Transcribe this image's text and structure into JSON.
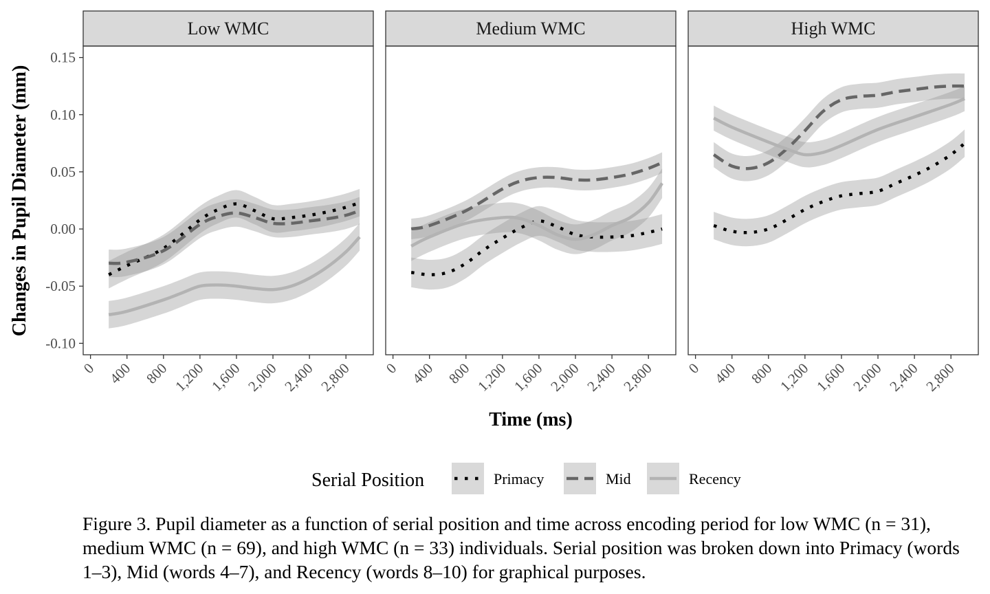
{
  "chart_data": {
    "type": "line",
    "ylabel": "Changes in Pupil Diameter (mm)",
    "xlabel": "Time (ms)",
    "xlim": [
      -80,
      3100
    ],
    "ylim": [
      -0.11,
      0.16
    ],
    "x_ticks": [
      0,
      400,
      800,
      1200,
      1600,
      2000,
      2400,
      2800
    ],
    "x_tick_labels": [
      "0",
      "400",
      "800",
      "1,200",
      "1,600",
      "2,000",
      "2,400",
      "2,800"
    ],
    "y_ticks": [
      -0.1,
      -0.05,
      0.0,
      0.05,
      0.1,
      0.15
    ],
    "y_tick_labels": [
      "-0.10",
      "-0.05",
      "0.00",
      "0.05",
      "0.10",
      "0.15"
    ],
    "grid": false,
    "legend": {
      "title": "Serial Position",
      "position": "bottom",
      "entries": [
        "Primacy",
        "Mid",
        "Recency"
      ]
    },
    "panels": [
      {
        "title": "Low WMC",
        "series": [
          {
            "name": "Primacy",
            "band": 0.012,
            "points": [
              [
                200,
                -0.04
              ],
              [
                400,
                -0.032
              ],
              [
                800,
                -0.017
              ],
              [
                1200,
                0.008
              ],
              [
                1400,
                0.017
              ],
              [
                1600,
                0.022
              ],
              [
                1800,
                0.016
              ],
              [
                2000,
                0.009
              ],
              [
                2200,
                0.01
              ],
              [
                2400,
                0.012
              ],
              [
                2600,
                0.015
              ],
              [
                2800,
                0.019
              ],
              [
                2950,
                0.023
              ]
            ]
          },
          {
            "name": "Mid",
            "band": 0.012,
            "points": [
              [
                200,
                -0.03
              ],
              [
                400,
                -0.029
              ],
              [
                800,
                -0.019
              ],
              [
                1200,
                0.004
              ],
              [
                1400,
                0.011
              ],
              [
                1600,
                0.014
              ],
              [
                1800,
                0.01
              ],
              [
                2000,
                0.005
              ],
              [
                2200,
                0.005
              ],
              [
                2400,
                0.007
              ],
              [
                2600,
                0.009
              ],
              [
                2800,
                0.012
              ],
              [
                2950,
                0.016
              ]
            ]
          },
          {
            "name": "Recency",
            "band": 0.012,
            "points": [
              [
                200,
                -0.075
              ],
              [
                400,
                -0.072
              ],
              [
                800,
                -0.062
              ],
              [
                1000,
                -0.056
              ],
              [
                1200,
                -0.05
              ],
              [
                1400,
                -0.049
              ],
              [
                1600,
                -0.05
              ],
              [
                1800,
                -0.052
              ],
              [
                2000,
                -0.053
              ],
              [
                2200,
                -0.05
              ],
              [
                2400,
                -0.043
              ],
              [
                2600,
                -0.033
              ],
              [
                2800,
                -0.02
              ],
              [
                2950,
                -0.007
              ]
            ]
          }
        ]
      },
      {
        "title": "Medium WMC",
        "series": [
          {
            "name": "Primacy",
            "band": 0.013,
            "points": [
              [
                200,
                -0.038
              ],
              [
                400,
                -0.04
              ],
              [
                600,
                -0.038
              ],
              [
                800,
                -0.03
              ],
              [
                1000,
                -0.018
              ],
              [
                1200,
                -0.008
              ],
              [
                1400,
                0.001
              ],
              [
                1600,
                0.007
              ],
              [
                1800,
                0.002
              ],
              [
                2000,
                -0.005
              ],
              [
                2200,
                -0.007
              ],
              [
                2400,
                -0.007
              ],
              [
                2600,
                -0.006
              ],
              [
                2800,
                -0.003
              ],
              [
                2950,
                0.0
              ]
            ]
          },
          {
            "name": "Mid",
            "band": 0.009,
            "points": [
              [
                200,
                0.0
              ],
              [
                400,
                0.003
              ],
              [
                800,
                0.016
              ],
              [
                1200,
                0.035
              ],
              [
                1400,
                0.042
              ],
              [
                1600,
                0.045
              ],
              [
                1800,
                0.045
              ],
              [
                2000,
                0.043
              ],
              [
                2200,
                0.043
              ],
              [
                2400,
                0.045
              ],
              [
                2600,
                0.048
              ],
              [
                2800,
                0.053
              ],
              [
                2950,
                0.058
              ]
            ]
          },
          {
            "name": "Recency",
            "band": 0.013,
            "points": [
              [
                200,
                -0.015
              ],
              [
                400,
                -0.007
              ],
              [
                800,
                0.005
              ],
              [
                1200,
                0.01
              ],
              [
                1400,
                0.009
              ],
              [
                1600,
                0.003
              ],
              [
                1800,
                -0.005
              ],
              [
                2000,
                -0.009
              ],
              [
                2200,
                -0.005
              ],
              [
                2400,
                0.003
              ],
              [
                2600,
                0.01
              ],
              [
                2800,
                0.023
              ],
              [
                2950,
                0.04
              ]
            ]
          }
        ]
      },
      {
        "title": "High WMC",
        "series": [
          {
            "name": "Primacy",
            "band": 0.012,
            "points": [
              [
                200,
                0.003
              ],
              [
                400,
                -0.002
              ],
              [
                600,
                -0.003
              ],
              [
                800,
                0.0
              ],
              [
                1000,
                0.008
              ],
              [
                1200,
                0.017
              ],
              [
                1400,
                0.024
              ],
              [
                1600,
                0.029
              ],
              [
                1800,
                0.031
              ],
              [
                2000,
                0.033
              ],
              [
                2200,
                0.04
              ],
              [
                2400,
                0.047
              ],
              [
                2600,
                0.055
              ],
              [
                2800,
                0.065
              ],
              [
                2950,
                0.075
              ]
            ]
          },
          {
            "name": "Mid",
            "band": 0.011,
            "points": [
              [
                200,
                0.065
              ],
              [
                400,
                0.055
              ],
              [
                600,
                0.053
              ],
              [
                800,
                0.058
              ],
              [
                1000,
                0.07
              ],
              [
                1200,
                0.086
              ],
              [
                1400,
                0.103
              ],
              [
                1600,
                0.113
              ],
              [
                1800,
                0.116
              ],
              [
                2000,
                0.117
              ],
              [
                2200,
                0.12
              ],
              [
                2400,
                0.122
              ],
              [
                2600,
                0.124
              ],
              [
                2800,
                0.125
              ],
              [
                2950,
                0.125
              ]
            ]
          },
          {
            "name": "Recency",
            "band": 0.011,
            "points": [
              [
                200,
                0.097
              ],
              [
                400,
                0.089
              ],
              [
                800,
                0.076
              ],
              [
                1000,
                0.07
              ],
              [
                1200,
                0.065
              ],
              [
                1400,
                0.067
              ],
              [
                1600,
                0.073
              ],
              [
                2000,
                0.087
              ],
              [
                2400,
                0.098
              ],
              [
                2800,
                0.109
              ],
              [
                2950,
                0.114
              ]
            ]
          }
        ]
      }
    ],
    "colors": {
      "Primacy": "#000000",
      "Mid": "#666666",
      "Recency": "#b3b3b3",
      "band": "#999999",
      "strip_fill": "#d9d9d9",
      "legend_key_fill": "#d9d9d9"
    },
    "caption": "Figure 3. Pupil diameter as a function of serial position and time across encoding period for low WMC (n = 31), medium WMC (n = 69), and high WMC (n = 33) individuals. Serial position was broken down into Primacy (words 1–3), Mid (words 4–7), and Recency (words 8–10) for graphical purposes."
  }
}
